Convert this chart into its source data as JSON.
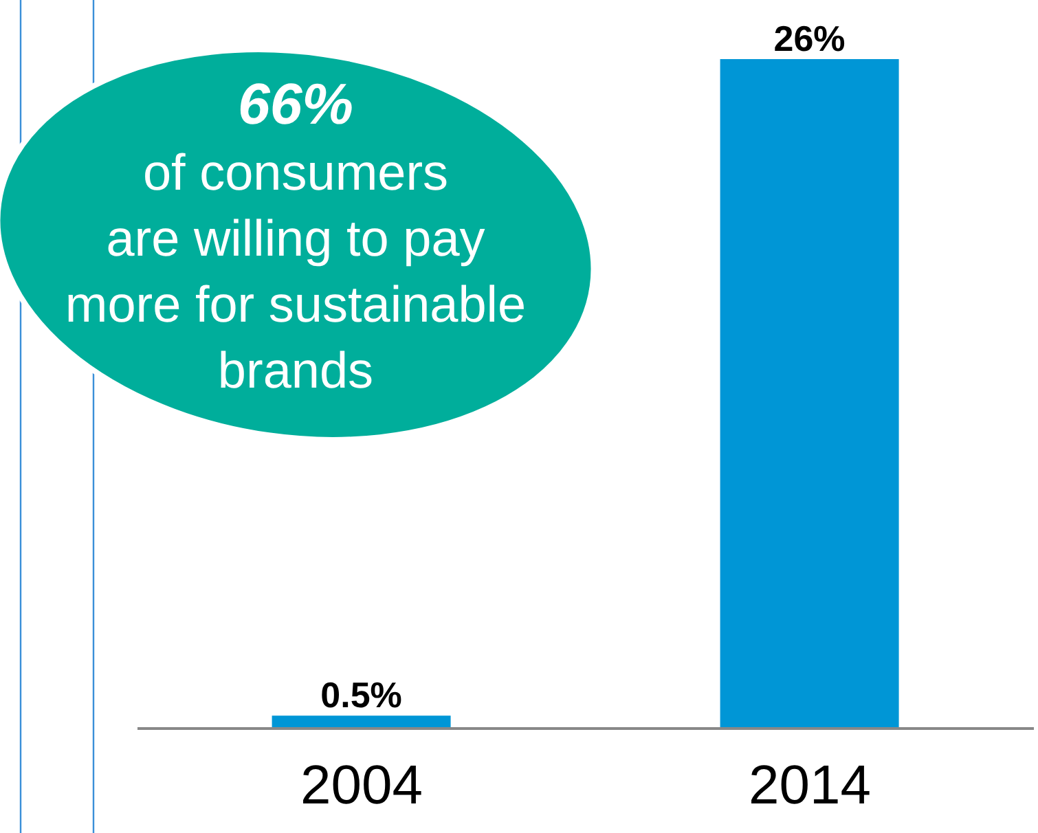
{
  "chart_data": {
    "type": "bar",
    "categories": [
      "2004",
      "2014"
    ],
    "values": [
      0.5,
      26
    ],
    "color": "#0096d6",
    "value_labels": [
      "0.5%",
      "26%"
    ],
    "annotations": [
      "66%",
      "of consumers",
      "are willing to pay",
      "more for sustainable",
      "brands"
    ]
  }
}
